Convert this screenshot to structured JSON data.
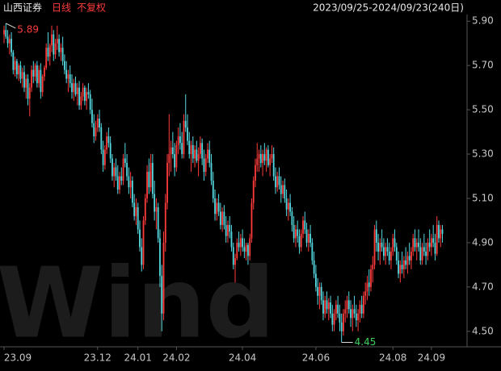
{
  "chart_data": {
    "type": "candlestick",
    "name": "山西证券",
    "period": "日线",
    "adjust": "不复权",
    "range": "2023/09/25-2024/09/23(240日)",
    "watermark": "Wind",
    "up_color": "#ff3b3b",
    "down_color": "#54d8e0",
    "ylim": [
      4.43,
      5.93
    ],
    "yticks": [
      {
        "value": 4.5,
        "label": "4.50"
      },
      {
        "value": 4.7,
        "label": "4.70"
      },
      {
        "value": 4.9,
        "label": "4.90"
      },
      {
        "value": 5.1,
        "label": "5.10"
      },
      {
        "value": 5.3,
        "label": "5.30"
      },
      {
        "value": 5.5,
        "label": "5.50"
      },
      {
        "value": 5.7,
        "label": "5.70"
      },
      {
        "value": 5.9,
        "label": "5.90"
      }
    ],
    "xticks": [
      {
        "value": 0,
        "label": "23.09"
      },
      {
        "value": 51,
        "label": "23.12"
      },
      {
        "value": 73,
        "label": "24.01"
      },
      {
        "value": 94,
        "label": "24.02"
      },
      {
        "value": 130,
        "label": "24.04"
      },
      {
        "value": 170,
        "label": "24.06"
      },
      {
        "value": 212,
        "label": "24.08"
      },
      {
        "value": 233,
        "label": "24.09"
      }
    ],
    "max_label": 5.89,
    "min_label": 4.45,
    "candles": [
      [
        5.84,
        5.88,
        5.8,
        5.86
      ],
      [
        5.86,
        5.89,
        5.82,
        5.83
      ],
      [
        5.83,
        5.86,
        5.78,
        5.8
      ],
      [
        5.8,
        5.84,
        5.75,
        5.82
      ],
      [
        5.82,
        5.85,
        5.74,
        5.76
      ],
      [
        5.76,
        5.77,
        5.66,
        5.68
      ],
      [
        5.68,
        5.74,
        5.65,
        5.72
      ],
      [
        5.72,
        5.73,
        5.64,
        5.66
      ],
      [
        5.66,
        5.71,
        5.63,
        5.7
      ],
      [
        5.7,
        5.72,
        5.62,
        5.64
      ],
      [
        5.64,
        5.69,
        5.6,
        5.67
      ],
      [
        5.67,
        5.7,
        5.58,
        5.6
      ],
      [
        5.6,
        5.66,
        5.55,
        5.64
      ],
      [
        5.64,
        5.66,
        5.52,
        5.55
      ],
      [
        5.55,
        5.62,
        5.47,
        5.6
      ],
      [
        5.6,
        5.7,
        5.58,
        5.68
      ],
      [
        5.68,
        5.72,
        5.62,
        5.65
      ],
      [
        5.65,
        5.71,
        5.63,
        5.7
      ],
      [
        5.7,
        5.72,
        5.6,
        5.62
      ],
      [
        5.62,
        5.7,
        5.6,
        5.68
      ],
      [
        5.68,
        5.71,
        5.55,
        5.58
      ],
      [
        5.58,
        5.66,
        5.56,
        5.65
      ],
      [
        5.65,
        5.7,
        5.63,
        5.69
      ],
      [
        5.69,
        5.8,
        5.68,
        5.78
      ],
      [
        5.78,
        5.85,
        5.72,
        5.74
      ],
      [
        5.74,
        5.8,
        5.7,
        5.79
      ],
      [
        5.79,
        5.88,
        5.76,
        5.84
      ],
      [
        5.84,
        5.86,
        5.72,
        5.75
      ],
      [
        5.75,
        5.82,
        5.73,
        5.8
      ],
      [
        5.8,
        5.88,
        5.77,
        5.82
      ],
      [
        5.82,
        5.84,
        5.74,
        5.76
      ],
      [
        5.76,
        5.8,
        5.72,
        5.78
      ],
      [
        5.78,
        5.83,
        5.7,
        5.72
      ],
      [
        5.72,
        5.75,
        5.66,
        5.68
      ],
      [
        5.68,
        5.72,
        5.62,
        5.64
      ],
      [
        5.64,
        5.68,
        5.58,
        5.66
      ],
      [
        5.66,
        5.7,
        5.6,
        5.62
      ],
      [
        5.62,
        5.66,
        5.55,
        5.58
      ],
      [
        5.58,
        5.64,
        5.54,
        5.62
      ],
      [
        5.62,
        5.65,
        5.56,
        5.57
      ],
      [
        5.57,
        5.62,
        5.52,
        5.6
      ],
      [
        5.6,
        5.63,
        5.5,
        5.52
      ],
      [
        5.52,
        5.58,
        5.5,
        5.56
      ],
      [
        5.56,
        5.62,
        5.54,
        5.6
      ],
      [
        5.6,
        5.61,
        5.52,
        5.54
      ],
      [
        5.54,
        5.6,
        5.5,
        5.58
      ],
      [
        5.58,
        5.62,
        5.55,
        5.57
      ],
      [
        5.57,
        5.59,
        5.48,
        5.5
      ],
      [
        5.5,
        5.55,
        5.42,
        5.44
      ],
      [
        5.44,
        5.48,
        5.35,
        5.38
      ],
      [
        5.38,
        5.45,
        5.36,
        5.42
      ],
      [
        5.42,
        5.48,
        5.4,
        5.46
      ],
      [
        5.46,
        5.5,
        5.4,
        5.42
      ],
      [
        5.42,
        5.44,
        5.3,
        5.32
      ],
      [
        5.32,
        5.36,
        5.22,
        5.25
      ],
      [
        5.25,
        5.34,
        5.23,
        5.32
      ],
      [
        5.32,
        5.4,
        5.3,
        5.38
      ],
      [
        5.38,
        5.42,
        5.33,
        5.35
      ],
      [
        5.35,
        5.38,
        5.26,
        5.28
      ],
      [
        5.28,
        5.3,
        5.18,
        5.2
      ],
      [
        5.2,
        5.26,
        5.15,
        5.24
      ],
      [
        5.24,
        5.28,
        5.18,
        5.2
      ],
      [
        5.2,
        5.25,
        5.12,
        5.14
      ],
      [
        5.14,
        5.22,
        5.12,
        5.2
      ],
      [
        5.2,
        5.24,
        5.16,
        5.18
      ],
      [
        5.18,
        5.3,
        5.16,
        5.28
      ],
      [
        5.28,
        5.35,
        5.24,
        5.26
      ],
      [
        5.26,
        5.3,
        5.18,
        5.2
      ],
      [
        5.2,
        5.24,
        5.12,
        5.15
      ],
      [
        5.15,
        5.22,
        5.1,
        5.18
      ],
      [
        5.18,
        5.2,
        5.06,
        5.08
      ],
      [
        5.08,
        5.12,
        5.0,
        5.02
      ],
      [
        5.02,
        5.1,
        4.98,
        5.06
      ],
      [
        5.06,
        5.08,
        4.94,
        4.96
      ],
      [
        4.96,
        5.0,
        4.86,
        4.88
      ],
      [
        4.88,
        4.92,
        4.77,
        4.8
      ],
      [
        4.8,
        5.02,
        4.78,
        5.0
      ],
      [
        5.0,
        5.12,
        4.98,
        5.1
      ],
      [
        5.1,
        5.25,
        5.08,
        5.22
      ],
      [
        5.22,
        5.28,
        5.12,
        5.15
      ],
      [
        5.15,
        5.3,
        5.13,
        5.26
      ],
      [
        5.26,
        5.3,
        5.1,
        5.12
      ],
      [
        5.12,
        5.18,
        5.0,
        5.04
      ],
      [
        5.04,
        5.1,
        4.96,
        5.06
      ],
      [
        5.06,
        5.08,
        4.9,
        4.92
      ],
      [
        4.92,
        4.96,
        4.7,
        4.75
      ],
      [
        4.75,
        4.8,
        4.5,
        4.58
      ],
      [
        4.58,
        4.95,
        4.55,
        4.9
      ],
      [
        4.9,
        5.12,
        4.86,
        5.08
      ],
      [
        5.08,
        5.3,
        5.05,
        5.26
      ],
      [
        5.26,
        5.48,
        5.2,
        5.3
      ],
      [
        5.3,
        5.36,
        5.22,
        5.33
      ],
      [
        5.33,
        5.4,
        5.28,
        5.3
      ],
      [
        5.3,
        5.35,
        5.2,
        5.24
      ],
      [
        5.24,
        5.36,
        5.22,
        5.34
      ],
      [
        5.34,
        5.42,
        5.3,
        5.38
      ],
      [
        5.38,
        5.44,
        5.32,
        5.35
      ],
      [
        5.35,
        5.4,
        5.28,
        5.3
      ],
      [
        5.3,
        5.48,
        5.28,
        5.45
      ],
      [
        5.45,
        5.57,
        5.4,
        5.42
      ],
      [
        5.42,
        5.48,
        5.34,
        5.36
      ],
      [
        5.36,
        5.4,
        5.28,
        5.3
      ],
      [
        5.3,
        5.36,
        5.22,
        5.34
      ],
      [
        5.34,
        5.38,
        5.26,
        5.28
      ],
      [
        5.28,
        5.34,
        5.24,
        5.32
      ],
      [
        5.32,
        5.36,
        5.26,
        5.27
      ],
      [
        5.27,
        5.33,
        5.2,
        5.3
      ],
      [
        5.3,
        5.38,
        5.28,
        5.35
      ],
      [
        5.35,
        5.37,
        5.25,
        5.28
      ],
      [
        5.28,
        5.32,
        5.18,
        5.22
      ],
      [
        5.22,
        5.3,
        5.2,
        5.28
      ],
      [
        5.28,
        5.35,
        5.26,
        5.32
      ],
      [
        5.32,
        5.36,
        5.24,
        5.26
      ],
      [
        5.26,
        5.3,
        5.16,
        5.18
      ],
      [
        5.18,
        5.22,
        5.08,
        5.1
      ],
      [
        5.1,
        5.14,
        5.0,
        5.03
      ],
      [
        5.03,
        5.1,
        5.0,
        5.08
      ],
      [
        5.08,
        5.12,
        5.02,
        5.04
      ],
      [
        5.04,
        5.08,
        4.96,
        4.98
      ],
      [
        4.98,
        5.06,
        4.95,
        5.04
      ],
      [
        5.04,
        5.07,
        4.96,
        4.98
      ],
      [
        4.98,
        5.02,
        4.9,
        4.93
      ],
      [
        4.93,
        5.0,
        4.9,
        4.98
      ],
      [
        4.98,
        5.02,
        4.92,
        4.95
      ],
      [
        4.95,
        4.98,
        4.86,
        4.88
      ],
      [
        4.88,
        4.9,
        4.78,
        4.8
      ],
      [
        4.8,
        4.85,
        4.72,
        4.83
      ],
      [
        4.83,
        4.92,
        4.82,
        4.9
      ],
      [
        4.9,
        4.95,
        4.86,
        4.88
      ],
      [
        4.88,
        4.94,
        4.84,
        4.92
      ],
      [
        4.92,
        4.96,
        4.86,
        4.88
      ],
      [
        4.88,
        4.92,
        4.83,
        4.86
      ],
      [
        4.86,
        4.9,
        4.82,
        4.89
      ],
      [
        4.89,
        4.9,
        4.8,
        4.84
      ],
      [
        4.84,
        4.94,
        4.82,
        4.92
      ],
      [
        4.92,
        5.1,
        4.9,
        5.08
      ],
      [
        5.08,
        5.2,
        5.05,
        5.18
      ],
      [
        5.18,
        5.28,
        5.15,
        5.25
      ],
      [
        5.25,
        5.35,
        5.22,
        5.28
      ],
      [
        5.28,
        5.32,
        5.22,
        5.3
      ],
      [
        5.3,
        5.34,
        5.24,
        5.26
      ],
      [
        5.26,
        5.32,
        5.2,
        5.3
      ],
      [
        5.3,
        5.35,
        5.25,
        5.27
      ],
      [
        5.27,
        5.33,
        5.22,
        5.32
      ],
      [
        5.32,
        5.34,
        5.24,
        5.25
      ],
      [
        5.25,
        5.3,
        5.2,
        5.28
      ],
      [
        5.28,
        5.34,
        5.26,
        5.3
      ],
      [
        5.3,
        5.33,
        5.18,
        5.2
      ],
      [
        5.2,
        5.24,
        5.12,
        5.15
      ],
      [
        5.15,
        5.22,
        5.13,
        5.2
      ],
      [
        5.2,
        5.24,
        5.14,
        5.16
      ],
      [
        5.16,
        5.2,
        5.08,
        5.12
      ],
      [
        5.12,
        5.18,
        5.1,
        5.16
      ],
      [
        5.16,
        5.19,
        5.08,
        5.1
      ],
      [
        5.1,
        5.14,
        5.02,
        5.05
      ],
      [
        5.05,
        5.1,
        5.0,
        5.08
      ],
      [
        5.08,
        5.12,
        5.02,
        5.04
      ],
      [
        5.04,
        5.06,
        4.95,
        4.98
      ],
      [
        4.98,
        5.02,
        4.9,
        4.92
      ],
      [
        4.92,
        4.98,
        4.88,
        4.96
      ],
      [
        4.96,
        5.0,
        4.9,
        4.93
      ],
      [
        4.93,
        4.96,
        4.85,
        4.88
      ],
      [
        4.88,
        4.96,
        4.86,
        4.94
      ],
      [
        4.94,
        5.02,
        4.92,
        5.0
      ],
      [
        5.0,
        5.04,
        4.94,
        4.96
      ],
      [
        4.96,
        4.99,
        4.88,
        4.9
      ],
      [
        4.9,
        4.96,
        4.86,
        4.94
      ],
      [
        4.94,
        4.98,
        4.88,
        4.9
      ],
      [
        4.9,
        4.92,
        4.8,
        4.82
      ],
      [
        4.82,
        4.86,
        4.74,
        4.76
      ],
      [
        4.76,
        4.8,
        4.68,
        4.7
      ],
      [
        4.7,
        4.74,
        4.62,
        4.66
      ],
      [
        4.66,
        4.72,
        4.6,
        4.7
      ],
      [
        4.7,
        4.72,
        4.62,
        4.64
      ],
      [
        4.64,
        4.68,
        4.55,
        4.58
      ],
      [
        4.58,
        4.66,
        4.56,
        4.64
      ],
      [
        4.64,
        4.68,
        4.58,
        4.6
      ],
      [
        4.6,
        4.65,
        4.55,
        4.63
      ],
      [
        4.63,
        4.66,
        4.56,
        4.58
      ],
      [
        4.58,
        4.62,
        4.5,
        4.53
      ],
      [
        4.53,
        4.6,
        4.5,
        4.58
      ],
      [
        4.58,
        4.64,
        4.55,
        4.62
      ],
      [
        4.62,
        4.66,
        4.56,
        4.58
      ],
      [
        4.58,
        4.62,
        4.5,
        4.54
      ],
      [
        4.54,
        4.58,
        4.45,
        4.5
      ],
      [
        4.5,
        4.6,
        4.48,
        4.58
      ],
      [
        4.58,
        4.64,
        4.54,
        4.6
      ],
      [
        4.6,
        4.66,
        4.56,
        4.64
      ],
      [
        4.64,
        4.68,
        4.58,
        4.6
      ],
      [
        4.6,
        4.64,
        4.52,
        4.56
      ],
      [
        4.56,
        4.62,
        4.5,
        4.6
      ],
      [
        4.6,
        4.66,
        4.56,
        4.58
      ],
      [
        4.58,
        4.62,
        4.52,
        4.55
      ],
      [
        4.55,
        4.6,
        4.5,
        4.58
      ],
      [
        4.58,
        4.64,
        4.54,
        4.62
      ],
      [
        4.62,
        4.66,
        4.56,
        4.58
      ],
      [
        4.58,
        4.68,
        4.56,
        4.66
      ],
      [
        4.66,
        4.72,
        4.62,
        4.68
      ],
      [
        4.68,
        4.75,
        4.64,
        4.72
      ],
      [
        4.72,
        4.78,
        4.66,
        4.7
      ],
      [
        4.7,
        4.8,
        4.68,
        4.78
      ],
      [
        4.78,
        4.84,
        4.72,
        4.8
      ],
      [
        4.8,
        4.98,
        4.78,
        4.96
      ],
      [
        4.96,
        5.0,
        4.86,
        4.9
      ],
      [
        4.9,
        4.94,
        4.82,
        4.86
      ],
      [
        4.86,
        4.92,
        4.8,
        4.9
      ],
      [
        4.9,
        4.96,
        4.86,
        4.88
      ],
      [
        4.88,
        4.92,
        4.82,
        4.84
      ],
      [
        4.84,
        4.9,
        4.8,
        4.88
      ],
      [
        4.88,
        4.92,
        4.84,
        4.86
      ],
      [
        4.86,
        4.9,
        4.8,
        4.82
      ],
      [
        4.82,
        4.88,
        4.78,
        4.86
      ],
      [
        4.86,
        4.94,
        4.84,
        4.92
      ],
      [
        4.92,
        4.96,
        4.86,
        4.88
      ],
      [
        4.88,
        4.9,
        4.8,
        4.82
      ],
      [
        4.82,
        4.86,
        4.74,
        4.76
      ],
      [
        4.76,
        4.82,
        4.72,
        4.8
      ],
      [
        4.8,
        4.86,
        4.76,
        4.78
      ],
      [
        4.78,
        4.84,
        4.74,
        4.82
      ],
      [
        4.82,
        4.88,
        4.78,
        4.8
      ],
      [
        4.8,
        4.86,
        4.76,
        4.84
      ],
      [
        4.84,
        4.9,
        4.8,
        4.82
      ],
      [
        4.82,
        4.88,
        4.78,
        4.86
      ],
      [
        4.86,
        4.94,
        4.84,
        4.92
      ],
      [
        4.92,
        4.96,
        4.86,
        4.88
      ],
      [
        4.88,
        4.92,
        4.82,
        4.9
      ],
      [
        4.9,
        4.96,
        4.86,
        4.88
      ],
      [
        4.88,
        4.92,
        4.8,
        4.82
      ],
      [
        4.82,
        4.9,
        4.8,
        4.88
      ],
      [
        4.88,
        4.94,
        4.84,
        4.86
      ],
      [
        4.86,
        4.9,
        4.8,
        4.84
      ],
      [
        4.84,
        4.92,
        4.82,
        4.9
      ],
      [
        4.9,
        4.96,
        4.86,
        4.88
      ],
      [
        4.88,
        4.94,
        4.84,
        4.92
      ],
      [
        4.92,
        4.98,
        4.88,
        4.9
      ],
      [
        4.9,
        4.94,
        4.82,
        4.85
      ],
      [
        4.85,
        5.02,
        4.84,
        4.98
      ],
      [
        4.98,
        5.0,
        4.9,
        4.92
      ],
      [
        4.92,
        4.98,
        4.88,
        4.96
      ],
      [
        4.96,
        4.98,
        4.9,
        4.94
      ]
    ]
  }
}
